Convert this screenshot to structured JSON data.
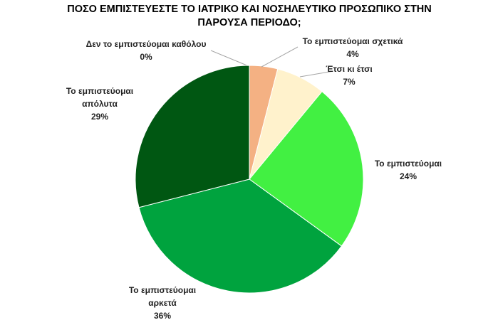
{
  "chart_data": {
    "type": "pie",
    "title": "ΠΟΣΟ ΕΜΠΙΣΤΕΥΕΣΤΕ ΤΟ ΙΑΤΡΙΚΟ ΚΑΙ ΝΟΣΗΛΕΥΤΙΚΟ ΠΡΟΣΩΠΙΚΟ ΣΤΗΝ ΠΑΡΟΥΣΑ ΠΕΡΙΟΔΟ;",
    "categories": [
      "Δεν το εμπιστεύομαι καθόλου",
      "Το εμπιστεύομαι σχετικά",
      "Έτσι κι έτσι",
      "Το εμπιστεύομαι",
      "Το εμπιστεύομαι αρκετά",
      "Το εμπιστεύομαι απόλυτα"
    ],
    "values": [
      0,
      4,
      7,
      24,
      36,
      29
    ],
    "value_labels": [
      "0%",
      "4%",
      "7%",
      "24%",
      "36%",
      "29%"
    ],
    "colors": [
      "#c55a11",
      "#f4b183",
      "#fff2cc",
      "#42f042",
      "#00a33e",
      "#005712"
    ]
  }
}
